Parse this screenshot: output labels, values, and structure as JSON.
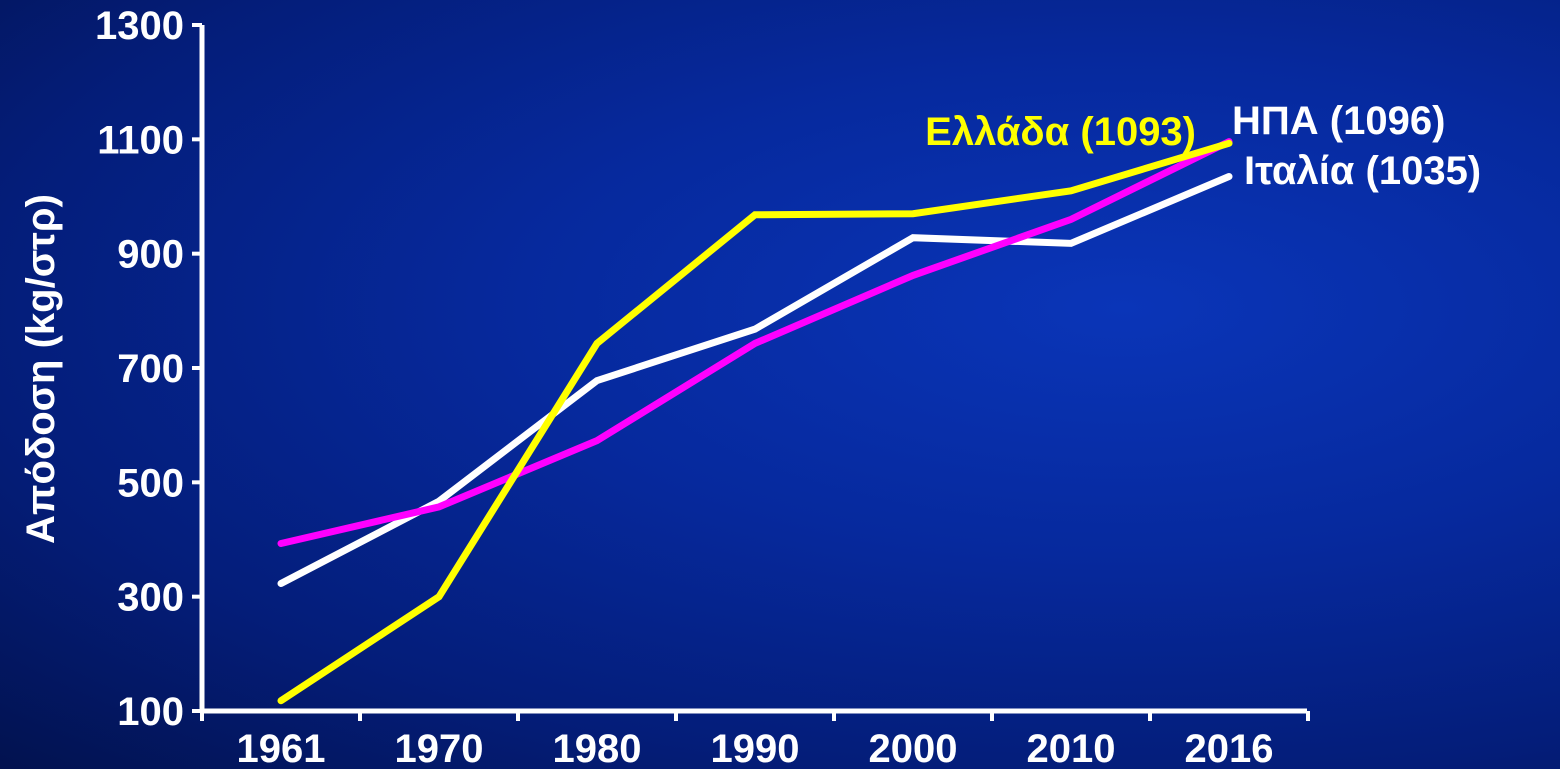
{
  "chart_data": {
    "type": "line",
    "title": "",
    "xlabel": "",
    "ylabel": "Απόδοση (kg/στρ)",
    "x": [
      1961,
      1970,
      1980,
      1990,
      2000,
      2010,
      2016
    ],
    "xticks": [
      "1961",
      "1970",
      "1980",
      "1990",
      "2000",
      "2010",
      "2016"
    ],
    "yticks": [
      "100",
      "300",
      "500",
      "700",
      "900",
      "1100",
      "1300"
    ],
    "ylim": [
      100,
      1300
    ],
    "grid": false,
    "series": [
      {
        "id": "greece",
        "label": "Ελλάδα (1093)",
        "color": "#ffff00",
        "values": [
          118,
          300,
          743,
          968,
          970,
          1010,
          1093
        ]
      },
      {
        "id": "usa",
        "label": "ΗΠΑ (1096)",
        "color": "#ff00ff",
        "values": [
          393,
          457,
          573,
          743,
          862,
          960,
          1096
        ]
      },
      {
        "id": "italy",
        "label": "Ιταλία (1035)",
        "color": "#ffffff",
        "values": [
          323,
          467,
          678,
          768,
          928,
          918,
          1035
        ]
      }
    ]
  }
}
